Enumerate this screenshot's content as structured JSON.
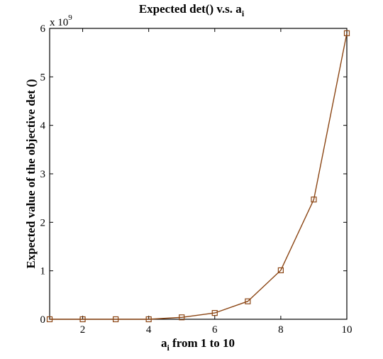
{
  "chart_data": {
    "type": "line",
    "title": "Expected det() v.s. a",
    "title_subscript": "i",
    "xlabel": "a",
    "xlabel_subscript": "i",
    "xlabel_suffix": " from 1 to 10",
    "ylabel": "Expected value of the objective det ()",
    "y_scale_base": "x 10",
    "y_scale_exponent": "9",
    "xlim": [
      1,
      10
    ],
    "ylim": [
      0,
      6
    ],
    "xticks": [
      "2",
      "4",
      "6",
      "8",
      "10"
    ],
    "yticks": [
      "0",
      "1",
      "2",
      "3",
      "4",
      "5",
      "6"
    ],
    "grid": false,
    "series": [
      {
        "marker": "square",
        "color": "#8B4513",
        "x": [
          1,
          2,
          3,
          4,
          5,
          6,
          7,
          8,
          9,
          10
        ],
        "y": [
          0.0,
          0.0,
          0.0,
          0.0,
          0.04,
          0.13,
          0.37,
          1.01,
          2.47,
          5.9
        ]
      }
    ]
  }
}
